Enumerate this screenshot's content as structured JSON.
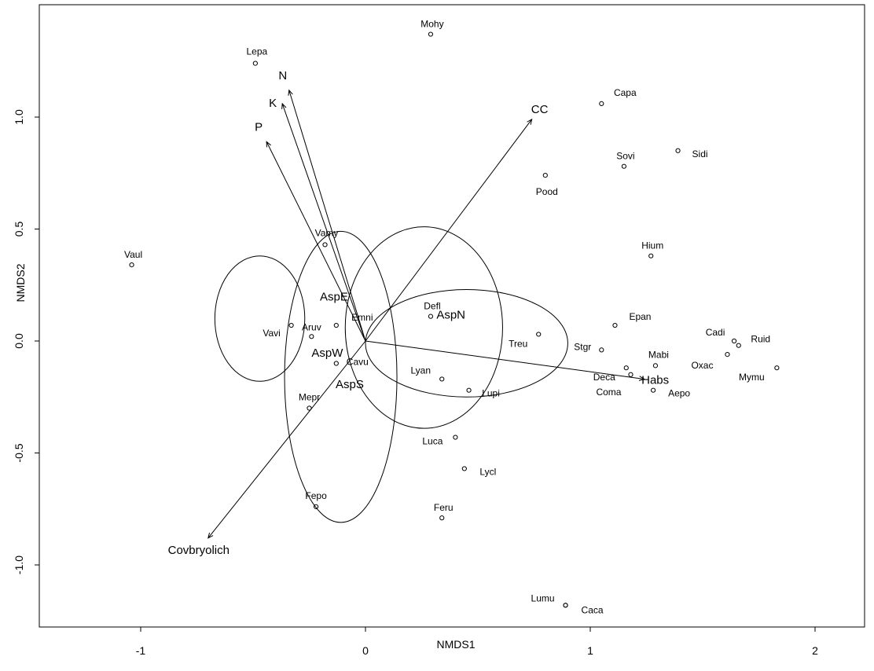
{
  "chart_data": {
    "type": "scatter",
    "title": "",
    "xlabel": "NMDS1",
    "ylabel": "NMDS2",
    "xlim": [
      -1.45,
      2.2
    ],
    "ylim": [
      -1.28,
      1.47
    ],
    "xticks": [
      -1,
      0,
      1,
      2
    ],
    "yticks": [
      -1.0,
      -0.5,
      0.0,
      0.5,
      1.0
    ],
    "species": [
      {
        "name": "Mohy",
        "x": 0.29,
        "y": 1.37
      },
      {
        "name": "Lepa",
        "x": -0.49,
        "y": 1.24
      },
      {
        "name": "Capa",
        "x": 1.05,
        "y": 1.06
      },
      {
        "name": "Sidi",
        "x": 1.39,
        "y": 0.85
      },
      {
        "name": "Sovi",
        "x": 1.15,
        "y": 0.78
      },
      {
        "name": "Pood",
        "x": 0.8,
        "y": 0.74
      },
      {
        "name": "Vaul",
        "x": -1.04,
        "y": 0.34
      },
      {
        "name": "Vamy",
        "x": -0.18,
        "y": 0.43
      },
      {
        "name": "Hium",
        "x": 1.27,
        "y": 0.38
      },
      {
        "name": "Defl",
        "x": 0.29,
        "y": 0.11
      },
      {
        "name": "Epan",
        "x": 1.11,
        "y": 0.07
      },
      {
        "name": "Vavi",
        "x": -0.33,
        "y": 0.07
      },
      {
        "name": "Aruv",
        "x": -0.24,
        "y": 0.02
      },
      {
        "name": "Emni",
        "x": -0.13,
        "y": 0.07
      },
      {
        "name": "Cadi",
        "x": 1.64,
        "y": 0.0
      },
      {
        "name": "Ruid",
        "x": 1.66,
        "y": -0.02
      },
      {
        "name": "Treu",
        "x": 0.77,
        "y": 0.03
      },
      {
        "name": "Stgr",
        "x": 1.05,
        "y": -0.04
      },
      {
        "name": "Deca",
        "x": 1.16,
        "y": -0.12
      },
      {
        "name": "Mabi",
        "x": 1.29,
        "y": -0.11
      },
      {
        "name": "Oxac",
        "x": 1.61,
        "y": -0.06
      },
      {
        "name": "Mymu",
        "x": 1.83,
        "y": -0.12
      },
      {
        "name": "Coma",
        "x": 1.18,
        "y": -0.15
      },
      {
        "name": "Aepo",
        "x": 1.28,
        "y": -0.22
      },
      {
        "name": "Cavu",
        "x": -0.13,
        "y": -0.1
      },
      {
        "name": "Lyan",
        "x": 0.34,
        "y": -0.17
      },
      {
        "name": "Lupi",
        "x": 0.46,
        "y": -0.22
      },
      {
        "name": "Mepr",
        "x": -0.25,
        "y": -0.3
      },
      {
        "name": "Luca",
        "x": 0.4,
        "y": -0.43
      },
      {
        "name": "Lycl",
        "x": 0.44,
        "y": -0.57
      },
      {
        "name": "Fepo",
        "x": -0.22,
        "y": -0.74
      },
      {
        "name": "Feru",
        "x": 0.34,
        "y": -0.79
      },
      {
        "name": "Lumu",
        "x": 0.89,
        "y": -1.18
      },
      {
        "name": "Caca",
        "x": 0.89,
        "y": -1.18
      }
    ],
    "vectors": [
      {
        "name": "N",
        "x": -0.34,
        "y": 1.12
      },
      {
        "name": "K",
        "x": -0.37,
        "y": 1.06
      },
      {
        "name": "P",
        "x": -0.44,
        "y": 0.89
      },
      {
        "name": "CC",
        "x": 0.74,
        "y": 0.99
      },
      {
        "name": "Habs",
        "x": 1.24,
        "y": -0.17
      },
      {
        "name": "Covbryolich",
        "x": -0.7,
        "y": -0.88
      }
    ],
    "groups": [
      {
        "name": "AspE",
        "cx": -0.47,
        "cy": 0.1,
        "rx": 0.2,
        "ry": 0.28
      },
      {
        "name": "AspW",
        "cx": -0.11,
        "cy": -0.16,
        "rx": 0.25,
        "ry": 0.65
      },
      {
        "name": "AspN",
        "cx": 0.26,
        "cy": 0.06,
        "rx": 0.35,
        "ry": 0.45
      },
      {
        "name": "AspS",
        "cx": 0.45,
        "cy": -0.01,
        "rx": 0.45,
        "ry": 0.24
      }
    ],
    "group_labels": [
      {
        "name": "AspE",
        "x": -0.14,
        "y": 0.18
      },
      {
        "name": "AspW",
        "x": -0.17,
        "y": -0.07
      },
      {
        "name": "AspN",
        "x": 0.38,
        "y": 0.1
      },
      {
        "name": "AspS",
        "x": -0.07,
        "y": -0.21
      }
    ],
    "grid": false,
    "legend": "none"
  }
}
